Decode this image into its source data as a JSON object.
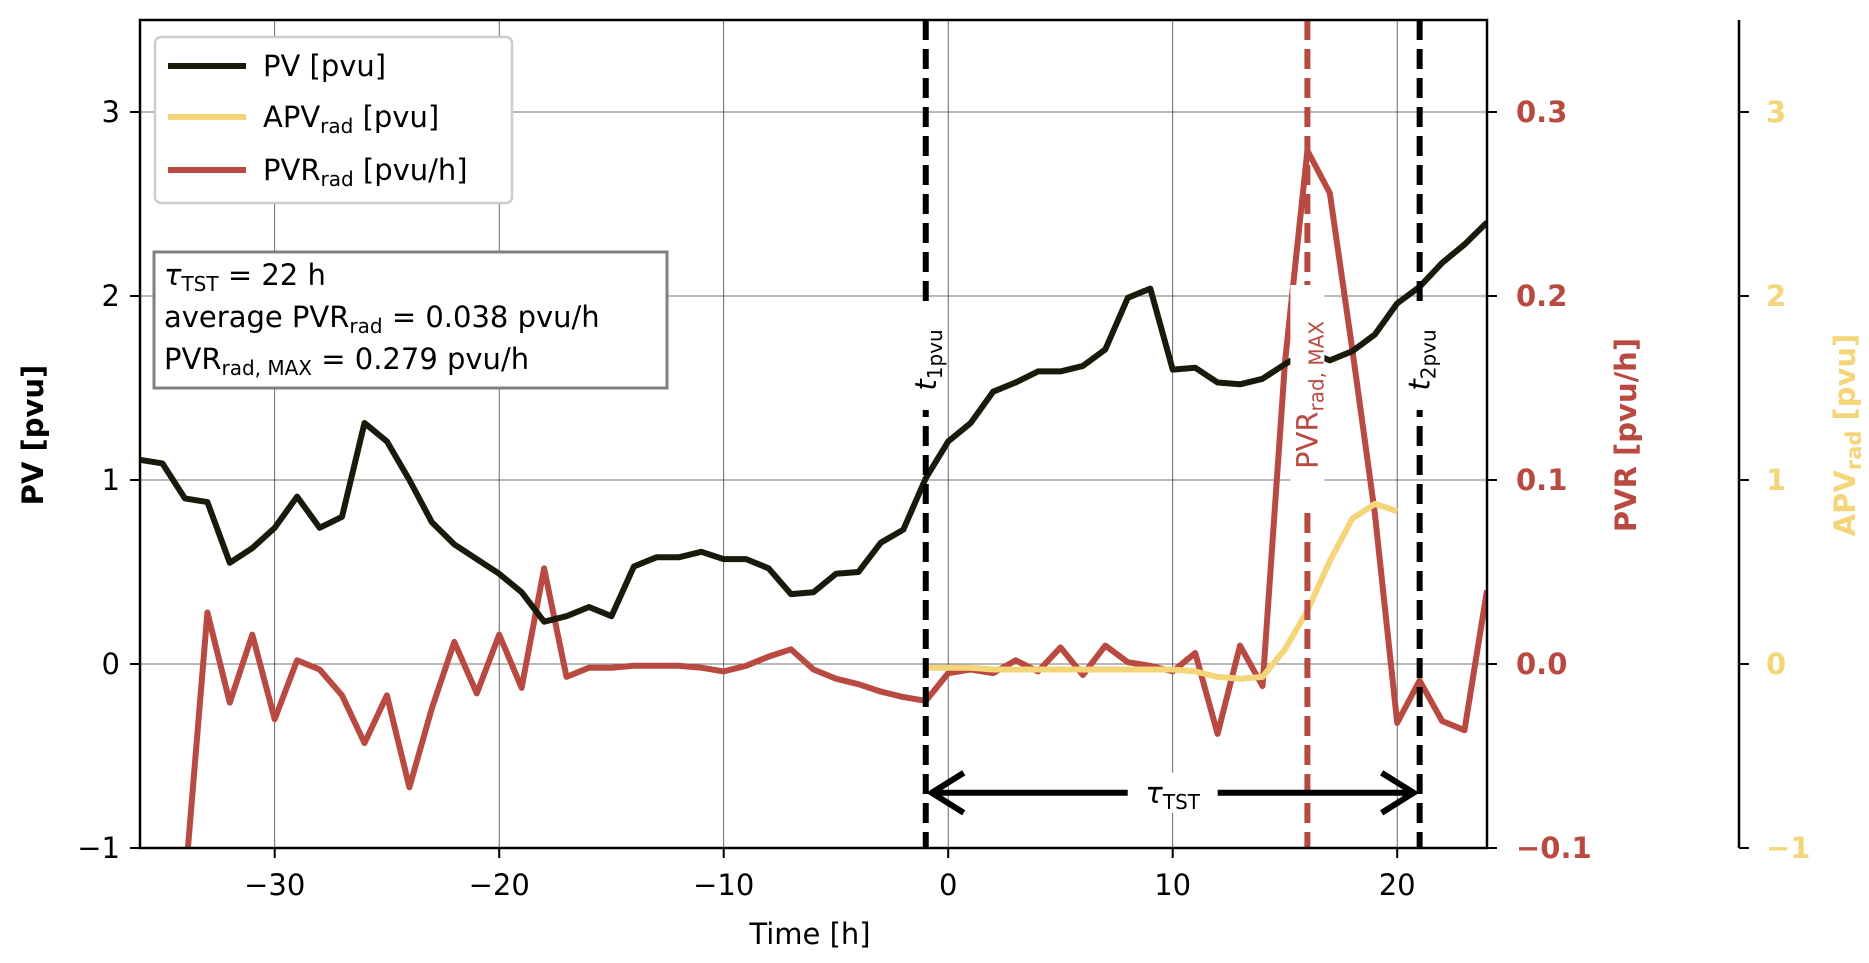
{
  "colors": {
    "pv": "#1a1a0a",
    "apv": "#f5d57a",
    "pvr": "#b94a42",
    "axis": "#000000",
    "grid": "#444444"
  },
  "chart_data": {
    "type": "line",
    "xlabel": "Time [h]",
    "ylabel_left": "PV [pvu]",
    "ylabel_right1": "PVR [pvu/h]",
    "ylabel_right2": "APV_rad [pvu]",
    "xlim": [
      -36,
      24
    ],
    "ylim_left": [
      -1,
      3.5
    ],
    "ylim_pvr": [
      -0.1,
      0.35
    ],
    "ylim_apv": [
      -1,
      3.5
    ],
    "xticks": [
      {
        "v": -30,
        "label": "−30"
      },
      {
        "v": -20,
        "label": "−20"
      },
      {
        "v": -10,
        "label": "−10"
      },
      {
        "v": 0,
        "label": "0"
      },
      {
        "v": 10,
        "label": "10"
      },
      {
        "v": 20,
        "label": "20"
      }
    ],
    "yticks_left": [
      {
        "v": -1,
        "label": "−1"
      },
      {
        "v": 0,
        "label": "0"
      },
      {
        "v": 1,
        "label": "1"
      },
      {
        "v": 2,
        "label": "2"
      },
      {
        "v": 3,
        "label": "3"
      }
    ],
    "yticks_pvr": [
      {
        "v": -0.1,
        "label": "−0.1"
      },
      {
        "v": 0.0,
        "label": "0.0"
      },
      {
        "v": 0.1,
        "label": "0.1"
      },
      {
        "v": 0.2,
        "label": "0.2"
      },
      {
        "v": 0.3,
        "label": "0.3"
      }
    ],
    "yticks_apv": [
      {
        "v": -1,
        "label": "−1"
      },
      {
        "v": 0,
        "label": "0"
      },
      {
        "v": 1,
        "label": "1"
      },
      {
        "v": 2,
        "label": "2"
      },
      {
        "v": 3,
        "label": "3"
      }
    ],
    "grid": true,
    "legend_position": "top-left",
    "series": [
      {
        "name": "PV [pvu]",
        "axis": "left",
        "x": [
          -36,
          -35,
          -34,
          -33,
          -32,
          -31,
          -30,
          -29,
          -28,
          -27,
          -26,
          -25,
          -24,
          -23,
          -22,
          -21,
          -20,
          -19,
          -18,
          -17,
          -16,
          -15,
          -14,
          -13,
          -12,
          -11,
          -10,
          -9,
          -8,
          -7,
          -6,
          -5,
          -4,
          -3,
          -2,
          -1,
          0,
          1,
          2,
          3,
          4,
          5,
          6,
          7,
          8,
          9,
          10,
          11,
          12,
          13,
          14,
          15,
          16,
          17,
          18,
          19,
          20,
          21,
          22,
          23,
          24
        ],
        "y": [
          1.11,
          1.09,
          0.9,
          0.88,
          0.55,
          0.63,
          0.74,
          0.91,
          0.74,
          0.8,
          1.31,
          1.21,
          1.0,
          0.77,
          0.65,
          0.57,
          0.49,
          0.39,
          0.23,
          0.26,
          0.31,
          0.26,
          0.53,
          0.58,
          0.58,
          0.61,
          0.57,
          0.57,
          0.52,
          0.38,
          0.39,
          0.49,
          0.5,
          0.66,
          0.73,
          1.01,
          1.21,
          1.31,
          1.48,
          1.53,
          1.59,
          1.59,
          1.62,
          1.71,
          1.99,
          2.04,
          1.6,
          1.61,
          1.53,
          1.52,
          1.55,
          1.63,
          1.7,
          1.65,
          1.7,
          1.79,
          1.96,
          2.05,
          2.18,
          2.28,
          2.4
        ]
      },
      {
        "name": "APV_rad [pvu]",
        "axis": "apv",
        "x": [
          -1,
          0,
          1,
          2,
          3,
          4,
          5,
          6,
          7,
          8,
          9,
          10,
          11,
          12,
          13,
          14,
          15,
          16,
          17,
          18,
          19,
          20
        ],
        "y": [
          -0.02,
          -0.02,
          -0.02,
          -0.03,
          -0.03,
          -0.03,
          -0.03,
          -0.03,
          -0.03,
          -0.03,
          -0.03,
          -0.03,
          -0.04,
          -0.07,
          -0.08,
          -0.07,
          0.08,
          0.29,
          0.56,
          0.79,
          0.87,
          0.83
        ]
      },
      {
        "name": "PVR_rad [pvu/h]",
        "axis": "pvr",
        "x": [
          -34,
          -33,
          -32,
          -31,
          -30,
          -29,
          -28,
          -27,
          -26,
          -25,
          -24,
          -23,
          -22,
          -21,
          -20,
          -19,
          -18,
          -17,
          -16,
          -15,
          -14,
          -13,
          -12,
          -11,
          -10,
          -9,
          -8,
          -7,
          -6,
          -5,
          -4,
          -3,
          -2,
          -1,
          0,
          1,
          2,
          3,
          4,
          5,
          6,
          7,
          8,
          9,
          10,
          11,
          12,
          13,
          14,
          15,
          16,
          17,
          18,
          19,
          20,
          21,
          22,
          23,
          24
        ],
        "y": [
          -0.12,
          0.028,
          -0.021,
          0.016,
          -0.03,
          0.002,
          -0.003,
          -0.017,
          -0.043,
          -0.017,
          -0.067,
          -0.024,
          0.012,
          -0.016,
          0.016,
          -0.013,
          0.052,
          -0.007,
          -0.002,
          -0.002,
          -0.001,
          -0.001,
          -0.001,
          -0.002,
          -0.004,
          -0.001,
          0.004,
          0.008,
          -0.003,
          -0.008,
          -0.011,
          -0.015,
          -0.018,
          -0.02,
          -0.005,
          -0.003,
          -0.005,
          0.002,
          -0.004,
          0.009,
          -0.006,
          0.01,
          0.001,
          -0.001,
          -0.004,
          0.006,
          -0.038,
          0.01,
          -0.012,
          0.164,
          0.279,
          0.256,
          0.171,
          0.082,
          -0.032,
          -0.009,
          -0.031,
          -0.036,
          0.04
        ]
      }
    ],
    "vlines": [
      {
        "x": -1,
        "label": "t",
        "sub": "1pvu",
        "color": "#000000"
      },
      {
        "x": 16,
        "label": "PVR",
        "sub": "rad, MAX",
        "color": "#b94a42"
      },
      {
        "x": 21,
        "label": "t",
        "sub": "2pvu",
        "color": "#000000"
      }
    ],
    "arrow": {
      "x_start": -1,
      "x_end": 21,
      "y": -0.7,
      "label": "τ",
      "sub": "TST"
    }
  },
  "legend": {
    "items": [
      {
        "main": "PV [pvu]",
        "sub": "",
        "tail": ""
      },
      {
        "main": "APV",
        "sub": "rad",
        "tail": " [pvu]"
      },
      {
        "main": "PVR",
        "sub": "rad",
        "tail": " [pvu/h]"
      }
    ]
  },
  "infobox": {
    "line1_symbol": "τ",
    "line1_sub": "TST",
    "line1_rest": " = 22 h",
    "line2_pre": "average PVR",
    "line2_sub": "rad",
    "line2_rest": " = 0.038 pvu/h",
    "line3_pre": "PVR",
    "line3_sub": "rad, MAX",
    "line3_rest": " = 0.279 pvu/h"
  },
  "axis_labels": {
    "x": "Time [h]",
    "left": "PV [pvu]",
    "pvr": "PVR [pvu/h]",
    "apv_main": "APV",
    "apv_sub": "rad",
    "apv_tail": " [pvu]"
  }
}
